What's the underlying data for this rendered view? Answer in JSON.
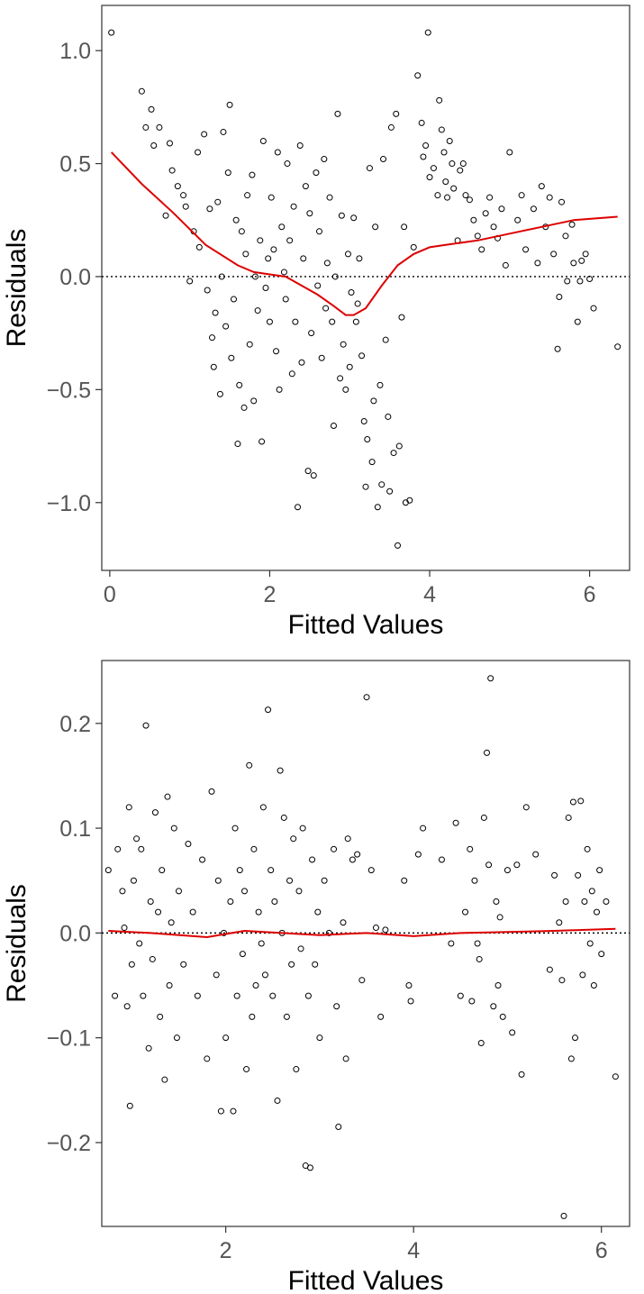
{
  "chart_data": [
    {
      "type": "scatter",
      "xlabel": "Fitted Values",
      "ylabel": "Residuals",
      "xlim": [
        -0.1,
        6.5
      ],
      "ylim": [
        -1.3,
        1.2
      ],
      "xticks": [
        0,
        2,
        4,
        6
      ],
      "yticks": [
        -1.0,
        -0.5,
        0.0,
        0.5,
        1.0
      ],
      "xtick_labels": [
        "0",
        "2",
        "4",
        "6"
      ],
      "ytick_labels": [
        "−1.0",
        "−0.5",
        "0.0",
        "0.5",
        "1.0"
      ],
      "grid": false,
      "reference_line": {
        "y": 0,
        "style": "dotted",
        "color": "#000000"
      },
      "smoother": {
        "color": "#dd0000",
        "x": [
          0.02,
          0.4,
          0.8,
          1.2,
          1.6,
          1.8,
          2.0,
          2.2,
          2.4,
          2.6,
          2.8,
          2.95,
          3.05,
          3.2,
          3.4,
          3.6,
          3.8,
          4.0,
          4.2,
          4.6,
          5.0,
          5.4,
          5.8,
          6.35
        ],
        "y": [
          0.55,
          0.41,
          0.28,
          0.14,
          0.05,
          0.02,
          0.01,
          0.0,
          -0.04,
          -0.08,
          -0.13,
          -0.17,
          -0.17,
          -0.14,
          -0.04,
          0.05,
          0.1,
          0.13,
          0.14,
          0.16,
          0.19,
          0.22,
          0.25,
          0.265
        ]
      },
      "points": [
        [
          0.02,
          1.08
        ],
        [
          0.4,
          0.82
        ],
        [
          0.45,
          0.66
        ],
        [
          0.52,
          0.74
        ],
        [
          0.55,
          0.58
        ],
        [
          0.62,
          0.66
        ],
        [
          0.7,
          0.27
        ],
        [
          0.75,
          0.59
        ],
        [
          0.78,
          0.47
        ],
        [
          0.85,
          0.4
        ],
        [
          0.92,
          0.36
        ],
        [
          0.95,
          0.31
        ],
        [
          1.0,
          -0.02
        ],
        [
          1.05,
          0.2
        ],
        [
          1.1,
          0.55
        ],
        [
          1.12,
          0.13
        ],
        [
          1.18,
          0.63
        ],
        [
          1.22,
          -0.06
        ],
        [
          1.25,
          0.3
        ],
        [
          1.28,
          -0.27
        ],
        [
          1.3,
          -0.4
        ],
        [
          1.32,
          -0.16
        ],
        [
          1.35,
          0.33
        ],
        [
          1.38,
          -0.52
        ],
        [
          1.4,
          0.0
        ],
        [
          1.42,
          0.64
        ],
        [
          1.45,
          -0.22
        ],
        [
          1.48,
          0.46
        ],
        [
          1.5,
          0.76
        ],
        [
          1.52,
          -0.36
        ],
        [
          1.55,
          -0.1
        ],
        [
          1.58,
          0.25
        ],
        [
          1.6,
          -0.74
        ],
        [
          1.62,
          -0.48
        ],
        [
          1.65,
          0.2
        ],
        [
          1.68,
          -0.58
        ],
        [
          1.7,
          0.1
        ],
        [
          1.72,
          0.36
        ],
        [
          1.75,
          -0.3
        ],
        [
          1.78,
          0.45
        ],
        [
          1.8,
          -0.55
        ],
        [
          1.82,
          0.0
        ],
        [
          1.85,
          -0.15
        ],
        [
          1.88,
          0.16
        ],
        [
          1.9,
          -0.73
        ],
        [
          1.92,
          0.6
        ],
        [
          1.95,
          -0.05
        ],
        [
          1.98,
          0.08
        ],
        [
          2.0,
          -0.2
        ],
        [
          2.02,
          0.35
        ],
        [
          2.05,
          0.12
        ],
        [
          2.08,
          -0.33
        ],
        [
          2.1,
          0.55
        ],
        [
          2.12,
          -0.5
        ],
        [
          2.15,
          0.22
        ],
        [
          2.18,
          0.02
        ],
        [
          2.2,
          -0.1
        ],
        [
          2.22,
          0.5
        ],
        [
          2.25,
          0.16
        ],
        [
          2.28,
          -0.43
        ],
        [
          2.3,
          0.31
        ],
        [
          2.32,
          -0.2
        ],
        [
          2.35,
          -1.02
        ],
        [
          2.38,
          0.58
        ],
        [
          2.4,
          -0.38
        ],
        [
          2.42,
          0.08
        ],
        [
          2.45,
          0.4
        ],
        [
          2.48,
          -0.86
        ],
        [
          2.5,
          0.28
        ],
        [
          2.52,
          -0.25
        ],
        [
          2.55,
          -0.88
        ],
        [
          2.58,
          0.46
        ],
        [
          2.6,
          -0.04
        ],
        [
          2.62,
          0.2
        ],
        [
          2.65,
          -0.36
        ],
        [
          2.68,
          0.52
        ],
        [
          2.7,
          -0.14
        ],
        [
          2.72,
          0.06
        ],
        [
          2.75,
          0.35
        ],
        [
          2.78,
          -0.2
        ],
        [
          2.8,
          -0.66
        ],
        [
          2.82,
          0.0
        ],
        [
          2.85,
          0.72
        ],
        [
          2.88,
          -0.45
        ],
        [
          2.9,
          0.27
        ],
        [
          2.92,
          -0.3
        ],
        [
          2.95,
          -0.5
        ],
        [
          2.98,
          0.1
        ],
        [
          3.0,
          -0.4
        ],
        [
          3.02,
          -0.07
        ],
        [
          3.05,
          0.26
        ],
        [
          3.08,
          -0.2
        ],
        [
          3.1,
          -0.12
        ],
        [
          3.12,
          0.08
        ],
        [
          3.15,
          -0.35
        ],
        [
          3.18,
          -0.64
        ],
        [
          3.2,
          -0.93
        ],
        [
          3.22,
          -0.72
        ],
        [
          3.25,
          0.48
        ],
        [
          3.28,
          -0.82
        ],
        [
          3.3,
          -0.55
        ],
        [
          3.32,
          0.22
        ],
        [
          3.35,
          -1.02
        ],
        [
          3.38,
          -0.48
        ],
        [
          3.4,
          -0.92
        ],
        [
          3.42,
          0.52
        ],
        [
          3.45,
          -0.28
        ],
        [
          3.48,
          -0.62
        ],
        [
          3.5,
          -0.95
        ],
        [
          3.52,
          0.66
        ],
        [
          3.55,
          -0.78
        ],
        [
          3.58,
          0.72
        ],
        [
          3.6,
          -1.19
        ],
        [
          3.62,
          -0.75
        ],
        [
          3.65,
          -0.18
        ],
        [
          3.68,
          0.22
        ],
        [
          3.7,
          -1.0
        ],
        [
          3.75,
          -0.99
        ],
        [
          3.8,
          0.13
        ],
        [
          3.85,
          0.89
        ],
        [
          3.9,
          0.68
        ],
        [
          3.92,
          0.53
        ],
        [
          3.95,
          0.58
        ],
        [
          3.98,
          1.08
        ],
        [
          4.0,
          0.44
        ],
        [
          4.05,
          0.48
        ],
        [
          4.1,
          0.36
        ],
        [
          4.12,
          0.78
        ],
        [
          4.15,
          0.65
        ],
        [
          4.18,
          0.55
        ],
        [
          4.2,
          0.42
        ],
        [
          4.22,
          0.35
        ],
        [
          4.25,
          0.6
        ],
        [
          4.28,
          0.5
        ],
        [
          4.3,
          0.39
        ],
        [
          4.35,
          0.16
        ],
        [
          4.38,
          0.47
        ],
        [
          4.42,
          0.5
        ],
        [
          4.45,
          0.36
        ],
        [
          4.5,
          0.34
        ],
        [
          4.55,
          0.25
        ],
        [
          4.6,
          0.18
        ],
        [
          4.65,
          0.12
        ],
        [
          4.7,
          0.28
        ],
        [
          4.75,
          0.35
        ],
        [
          4.8,
          0.22
        ],
        [
          4.85,
          0.17
        ],
        [
          4.9,
          0.3
        ],
        [
          4.95,
          0.05
        ],
        [
          5.0,
          0.55
        ],
        [
          5.1,
          0.25
        ],
        [
          5.15,
          0.36
        ],
        [
          5.2,
          0.12
        ],
        [
          5.3,
          0.3
        ],
        [
          5.35,
          0.06
        ],
        [
          5.4,
          0.4
        ],
        [
          5.45,
          0.22
        ],
        [
          5.5,
          0.35
        ],
        [
          5.55,
          0.1
        ],
        [
          5.6,
          -0.32
        ],
        [
          5.62,
          -0.09
        ],
        [
          5.65,
          0.33
        ],
        [
          5.7,
          0.18
        ],
        [
          5.72,
          -0.02
        ],
        [
          5.78,
          0.23
        ],
        [
          5.8,
          0.06
        ],
        [
          5.85,
          -0.2
        ],
        [
          5.88,
          -0.02
        ],
        [
          5.9,
          0.07
        ],
        [
          5.95,
          0.1
        ],
        [
          6.0,
          -0.01
        ],
        [
          6.05,
          -0.14
        ],
        [
          6.35,
          -0.31
        ]
      ]
    },
    {
      "type": "scatter",
      "xlabel": "Fitted Values",
      "ylabel": "Residuals",
      "xlim": [
        0.68,
        6.3
      ],
      "ylim": [
        -0.28,
        0.26
      ],
      "xticks": [
        2,
        4,
        6
      ],
      "yticks": [
        -0.2,
        -0.1,
        0.0,
        0.1,
        0.2
      ],
      "xtick_labels": [
        "2",
        "4",
        "6"
      ],
      "ytick_labels": [
        "−0.2",
        "−0.1",
        "0.0",
        "0.1",
        "0.2"
      ],
      "grid": false,
      "reference_line": {
        "y": 0,
        "style": "dotted",
        "color": "#000000"
      },
      "smoother": {
        "color": "#dd0000",
        "x": [
          0.75,
          1.2,
          1.8,
          2.2,
          2.6,
          3.0,
          3.5,
          4.0,
          4.5,
          5.0,
          5.5,
          6.15
        ],
        "y": [
          0.002,
          0.0,
          -0.004,
          0.002,
          0.0,
          -0.002,
          0.0,
          -0.003,
          0.0,
          0.001,
          0.002,
          0.004
        ]
      },
      "points": [
        [
          0.75,
          0.06
        ],
        [
          0.82,
          -0.06
        ],
        [
          0.85,
          0.08
        ],
        [
          0.9,
          0.04
        ],
        [
          0.92,
          0.005
        ],
        [
          0.95,
          -0.07
        ],
        [
          0.97,
          0.12
        ],
        [
          0.98,
          -0.165
        ],
        [
          1.0,
          -0.03
        ],
        [
          1.02,
          0.05
        ],
        [
          1.05,
          0.09
        ],
        [
          1.08,
          -0.01
        ],
        [
          1.1,
          0.08
        ],
        [
          1.12,
          -0.06
        ],
        [
          1.15,
          0.198
        ],
        [
          1.18,
          -0.11
        ],
        [
          1.2,
          0.03
        ],
        [
          1.22,
          -0.025
        ],
        [
          1.25,
          0.115
        ],
        [
          1.28,
          0.02
        ],
        [
          1.3,
          -0.08
        ],
        [
          1.32,
          0.06
        ],
        [
          1.35,
          -0.14
        ],
        [
          1.38,
          0.13
        ],
        [
          1.4,
          -0.05
        ],
        [
          1.42,
          0.01
        ],
        [
          1.45,
          0.1
        ],
        [
          1.48,
          -0.1
        ],
        [
          1.5,
          0.04
        ],
        [
          1.55,
          -0.03
        ],
        [
          1.6,
          0.085
        ],
        [
          1.65,
          0.02
        ],
        [
          1.7,
          -0.06
        ],
        [
          1.75,
          0.07
        ],
        [
          1.8,
          -0.12
        ],
        [
          1.85,
          0.135
        ],
        [
          1.9,
          -0.04
        ],
        [
          1.92,
          0.05
        ],
        [
          1.95,
          -0.17
        ],
        [
          1.98,
          0.0
        ],
        [
          2.0,
          -0.1
        ],
        [
          2.05,
          0.03
        ],
        [
          2.08,
          -0.17
        ],
        [
          2.1,
          0.1
        ],
        [
          2.12,
          -0.06
        ],
        [
          2.15,
          0.06
        ],
        [
          2.18,
          -0.02
        ],
        [
          2.2,
          0.04
        ],
        [
          2.22,
          -0.13
        ],
        [
          2.25,
          0.16
        ],
        [
          2.28,
          -0.08
        ],
        [
          2.3,
          0.08
        ],
        [
          2.32,
          -0.05
        ],
        [
          2.35,
          0.02
        ],
        [
          2.38,
          -0.01
        ],
        [
          2.4,
          0.12
        ],
        [
          2.42,
          -0.04
        ],
        [
          2.45,
          0.213
        ],
        [
          2.48,
          0.06
        ],
        [
          2.5,
          -0.06
        ],
        [
          2.52,
          0.03
        ],
        [
          2.55,
          -0.16
        ],
        [
          2.58,
          0.155
        ],
        [
          2.6,
          0.0
        ],
        [
          2.62,
          0.11
        ],
        [
          2.65,
          -0.08
        ],
        [
          2.68,
          0.05
        ],
        [
          2.7,
          -0.03
        ],
        [
          2.72,
          0.09
        ],
        [
          2.75,
          -0.13
        ],
        [
          2.78,
          0.04
        ],
        [
          2.8,
          -0.015
        ],
        [
          2.82,
          0.1
        ],
        [
          2.85,
          -0.222
        ],
        [
          2.88,
          -0.06
        ],
        [
          2.9,
          -0.224
        ],
        [
          2.92,
          0.07
        ],
        [
          2.95,
          -0.03
        ],
        [
          2.98,
          0.02
        ],
        [
          3.0,
          -0.1
        ],
        [
          3.05,
          0.05
        ],
        [
          3.1,
          0.0
        ],
        [
          3.15,
          0.08
        ],
        [
          3.18,
          -0.07
        ],
        [
          3.2,
          -0.185
        ],
        [
          3.25,
          0.01
        ],
        [
          3.28,
          -0.12
        ],
        [
          3.3,
          0.09
        ],
        [
          3.35,
          0.07
        ],
        [
          3.4,
          0.075
        ],
        [
          3.45,
          -0.045
        ],
        [
          3.5,
          0.225
        ],
        [
          3.55,
          0.06
        ],
        [
          3.6,
          0.005
        ],
        [
          3.65,
          -0.08
        ],
        [
          3.7,
          0.003
        ],
        [
          3.9,
          0.05
        ],
        [
          3.95,
          -0.05
        ],
        [
          3.97,
          -0.065
        ],
        [
          4.05,
          0.075
        ],
        [
          4.1,
          0.1
        ],
        [
          4.3,
          0.07
        ],
        [
          4.4,
          -0.01
        ],
        [
          4.45,
          0.105
        ],
        [
          4.5,
          -0.06
        ],
        [
          4.55,
          0.02
        ],
        [
          4.6,
          0.08
        ],
        [
          4.62,
          -0.065
        ],
        [
          4.65,
          0.05
        ],
        [
          4.68,
          -0.01
        ],
        [
          4.7,
          -0.025
        ],
        [
          4.72,
          -0.105
        ],
        [
          4.75,
          0.11
        ],
        [
          4.78,
          0.172
        ],
        [
          4.8,
          0.065
        ],
        [
          4.82,
          0.243
        ],
        [
          4.85,
          -0.07
        ],
        [
          4.88,
          0.03
        ],
        [
          4.9,
          -0.05
        ],
        [
          4.92,
          0.015
        ],
        [
          4.95,
          -0.08
        ],
        [
          5.0,
          0.06
        ],
        [
          5.05,
          -0.095
        ],
        [
          5.1,
          0.065
        ],
        [
          5.15,
          -0.135
        ],
        [
          5.2,
          0.12
        ],
        [
          5.3,
          0.075
        ],
        [
          5.45,
          -0.035
        ],
        [
          5.5,
          0.055
        ],
        [
          5.55,
          0.01
        ],
        [
          5.58,
          -0.045
        ],
        [
          5.6,
          -0.27
        ],
        [
          5.62,
          0.03
        ],
        [
          5.65,
          0.11
        ],
        [
          5.68,
          -0.12
        ],
        [
          5.7,
          0.125
        ],
        [
          5.72,
          -0.1
        ],
        [
          5.75,
          0.055
        ],
        [
          5.78,
          0.126
        ],
        [
          5.8,
          -0.04
        ],
        [
          5.82,
          0.03
        ],
        [
          5.85,
          0.08
        ],
        [
          5.88,
          -0.01
        ],
        [
          5.9,
          0.04
        ],
        [
          5.92,
          -0.05
        ],
        [
          5.95,
          0.02
        ],
        [
          5.98,
          0.06
        ],
        [
          6.0,
          -0.02
        ],
        [
          6.05,
          0.03
        ],
        [
          6.15,
          -0.137
        ]
      ]
    }
  ]
}
